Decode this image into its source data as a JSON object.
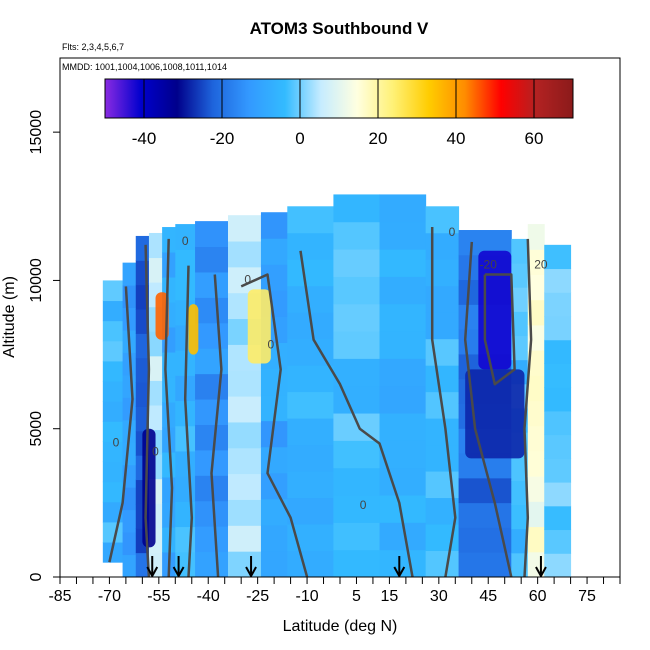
{
  "chart_data": {
    "type": "heatmap",
    "title": "ATOM3 Southbound V",
    "subtitle_flights": "Flts: 2,3,4,5,6,7",
    "subtitle_dates": "MMDD: 1001,1004,1006,1008,1011,1014",
    "xlabel": "Latitude (deg N)",
    "ylabel": "Altitude (m)",
    "xlim": [
      -85,
      85
    ],
    "ylim": [
      0,
      17500
    ],
    "x_ticks": [
      -85,
      -70,
      -55,
      -40,
      -25,
      -10,
      5,
      15,
      30,
      45,
      60,
      75
    ],
    "y_ticks": [
      0,
      5000,
      10000,
      15000
    ],
    "colorbar": {
      "range": [
        -50,
        70
      ],
      "ticks": [
        -40,
        -20,
        0,
        20,
        40,
        60
      ],
      "colors": [
        "#8a2be2",
        "#0000cd",
        "#00008b",
        "#1e64dc",
        "#3399ff",
        "#33bbff",
        "#c6ecff",
        "#ffffe0",
        "#fff176",
        "#ffcc00",
        "#ff8c00",
        "#ff0000",
        "#b22222",
        "#8b1a1a"
      ]
    },
    "contour_labels": [
      "0",
      "0",
      "0",
      "0",
      "0",
      "0",
      "0",
      "-20",
      "20"
    ],
    "flight_dive_markers_latitude": [
      -57,
      -49,
      -27,
      18,
      61
    ],
    "field": {
      "lat_bands": [
        {
          "lat": [
            -72,
            -66
          ],
          "alt": [
            500,
            10000
          ],
          "v": -5
        },
        {
          "lat": [
            -66,
            -62
          ],
          "alt": [
            0,
            10600
          ],
          "v": -12
        },
        {
          "lat": [
            -62,
            -58
          ],
          "alt": [
            0,
            11500
          ],
          "v": -22
        },
        {
          "lat": [
            -58,
            -54
          ],
          "alt": [
            0,
            11600
          ],
          "v": 5
        },
        {
          "lat": [
            -54,
            -50
          ],
          "alt": [
            0,
            11800
          ],
          "v": -8
        },
        {
          "lat": [
            -50,
            -44
          ],
          "alt": [
            0,
            11900
          ],
          "v": -6
        },
        {
          "lat": [
            -44,
            -34
          ],
          "alt": [
            0,
            12000
          ],
          "v": -14
        },
        {
          "lat": [
            -34,
            -24
          ],
          "alt": [
            0,
            12200
          ],
          "v": 4
        },
        {
          "lat": [
            -24,
            -16
          ],
          "alt": [
            0,
            12300
          ],
          "v": -10
        },
        {
          "lat": [
            -16,
            -2
          ],
          "alt": [
            0,
            12500
          ],
          "v": -6
        },
        {
          "lat": [
            -2,
            12
          ],
          "alt": [
            0,
            12900
          ],
          "v": -4
        },
        {
          "lat": [
            12,
            26
          ],
          "alt": [
            0,
            12900
          ],
          "v": -7
        },
        {
          "lat": [
            26,
            36
          ],
          "alt": [
            0,
            12500
          ],
          "v": -5
        },
        {
          "lat": [
            36,
            52
          ],
          "alt": [
            0,
            11700
          ],
          "v": -20
        },
        {
          "lat": [
            52,
            57
          ],
          "alt": [
            0,
            11400
          ],
          "v": -4
        },
        {
          "lat": [
            57,
            62
          ],
          "alt": [
            0,
            11900
          ],
          "v": 14
        },
        {
          "lat": [
            62,
            70
          ],
          "alt": [
            0,
            11200
          ],
          "v": -2
        }
      ],
      "features": [
        {
          "lat": [
            -56,
            -52
          ],
          "alt": [
            8000,
            9600
          ],
          "v": 45
        },
        {
          "lat": [
            -46,
            -43
          ],
          "alt": [
            7500,
            9200
          ],
          "v": 35
        },
        {
          "lat": [
            -28,
            -21
          ],
          "alt": [
            7200,
            9700
          ],
          "v": 25
        },
        {
          "lat": [
            42,
            52
          ],
          "alt": [
            7000,
            11000
          ],
          "v": -42
        },
        {
          "lat": [
            38,
            56
          ],
          "alt": [
            4000,
            7000
          ],
          "v": -28
        },
        {
          "lat": [
            -60,
            -56
          ],
          "alt": [
            1000,
            5000
          ],
          "v": -32
        }
      ]
    }
  }
}
